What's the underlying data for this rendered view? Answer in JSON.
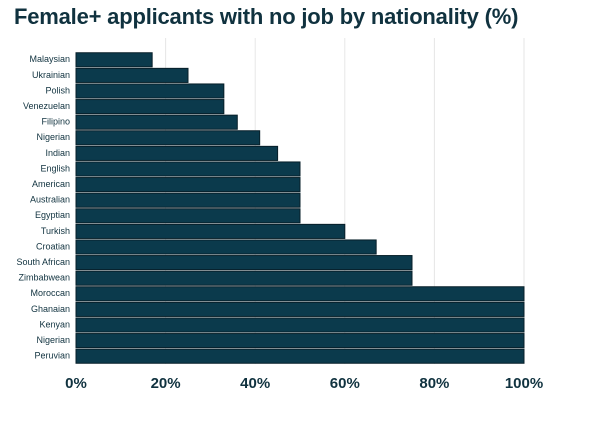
{
  "chart_data": {
    "type": "bar",
    "orientation": "horizontal",
    "title": "Female+ applicants with no job by nationality (%)",
    "categories": [
      "Malaysian",
      "Ukrainian",
      "Polish",
      "Venezuelan",
      "Filipino",
      "Nigerian",
      "Indian",
      "English",
      "American",
      "Australian",
      "Egyptian",
      "Turkish",
      "Croatian",
      "South African",
      "Zimbabwean",
      "Moroccan",
      "Ghanaian",
      "Kenyan",
      "Nigerian",
      "Peruvian"
    ],
    "values": [
      17,
      25,
      33,
      33,
      36,
      41,
      45,
      50,
      50,
      50,
      50,
      60,
      67,
      75,
      75,
      100,
      100,
      100,
      100,
      100
    ],
    "xlim": [
      0,
      100
    ],
    "xticks": [
      0,
      20,
      40,
      60,
      80,
      100
    ],
    "xtick_labels": [
      "0%",
      "20%",
      "40%",
      "60%",
      "80%",
      "100%"
    ],
    "xlabel": "",
    "ylabel": "",
    "grid": true,
    "legend": "none",
    "colors": {
      "bar": "#0b3a4c",
      "bar_edge": "#071f29",
      "text": "#10323f",
      "grid": "#e6e6e6"
    }
  }
}
